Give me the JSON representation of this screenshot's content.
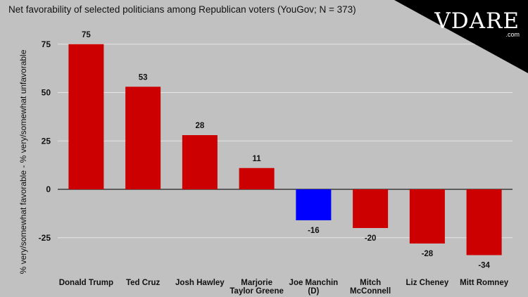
{
  "chart_data": {
    "type": "bar",
    "title": "Net favorability of selected politicians among Republican voters (YouGov; N = 373)",
    "ylabel": "% very/somewhat favorable - % very/somewhat unfavorable",
    "xlabel": "",
    "ylim": [
      -38,
      80
    ],
    "yticks": [
      75,
      50,
      25,
      0,
      -25
    ],
    "grid": true,
    "categories": [
      [
        "Donald Trump"
      ],
      [
        "Ted Cruz"
      ],
      [
        "Josh Hawley"
      ],
      [
        "Marjorie",
        "Taylor Greene"
      ],
      [
        "Joe Manchin",
        "(D)"
      ],
      [
        "Mitch",
        "McConnell"
      ],
      [
        "Liz Cheney"
      ],
      [
        "Mitt Romney"
      ]
    ],
    "values": [
      75,
      53,
      28,
      11,
      -16,
      -20,
      -28,
      -34
    ],
    "colors": [
      "#cc0000",
      "#cc0000",
      "#cc0000",
      "#cc0000",
      "#0000ff",
      "#cc0000",
      "#cc0000",
      "#cc0000"
    ]
  },
  "logo": {
    "main": "VDARE",
    "sub": ".com"
  }
}
